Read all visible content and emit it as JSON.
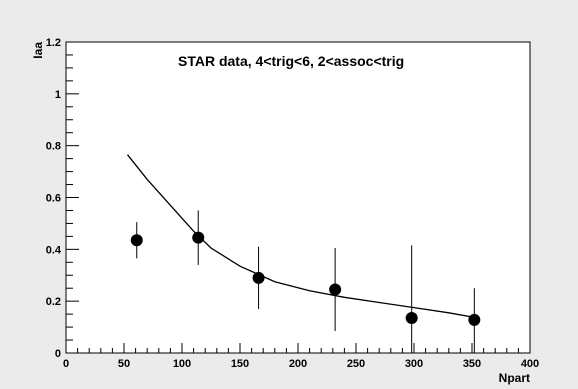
{
  "chart_data": {
    "type": "scatter",
    "title": "STAR data, 4<trig<6,  2<assoc<trig",
    "xlabel": "Npart",
    "ylabel": "Iaa",
    "xlim": [
      0,
      400
    ],
    "ylim": [
      0,
      1.2
    ],
    "x_ticks": [
      0,
      50,
      100,
      150,
      200,
      250,
      300,
      350,
      400
    ],
    "y_ticks": [
      0,
      0.2,
      0.4,
      0.6,
      0.8,
      1,
      1.2
    ],
    "x_tick_labels": [
      "0",
      "50",
      "100",
      "150",
      "200",
      "250",
      "300",
      "350",
      "400"
    ],
    "y_tick_labels": [
      "0",
      "0.2",
      "0.4",
      "0.6",
      "0.8",
      "1",
      "1.2"
    ],
    "grid": false,
    "series": [
      {
        "style": "markers-with-error-bars",
        "color": "#000000",
        "points": [
          {
            "x": 61,
            "y": 0.435,
            "yerr_low": 0.07,
            "yerr_high": 0.07
          },
          {
            "x": 114,
            "y": 0.445,
            "yerr_low": 0.105,
            "yerr_high": 0.105
          },
          {
            "x": 166,
            "y": 0.29,
            "yerr_low": 0.12,
            "yerr_high": 0.12
          },
          {
            "x": 232,
            "y": 0.245,
            "yerr_low": 0.16,
            "yerr_high": 0.16
          },
          {
            "x": 298,
            "y": 0.135,
            "yerr_low": 0.135,
            "yerr_high": 0.28
          },
          {
            "x": 352,
            "y": 0.128,
            "yerr_low": 0.128,
            "yerr_high": 0.122
          }
        ]
      },
      {
        "style": "line",
        "color": "#000000",
        "x": [
          53,
          70,
          90,
          110,
          125,
          150,
          180,
          210,
          240,
          270,
          300,
          330,
          355
        ],
        "y": [
          0.765,
          0.67,
          0.57,
          0.47,
          0.405,
          0.335,
          0.275,
          0.24,
          0.215,
          0.195,
          0.175,
          0.155,
          0.135
        ]
      }
    ]
  }
}
